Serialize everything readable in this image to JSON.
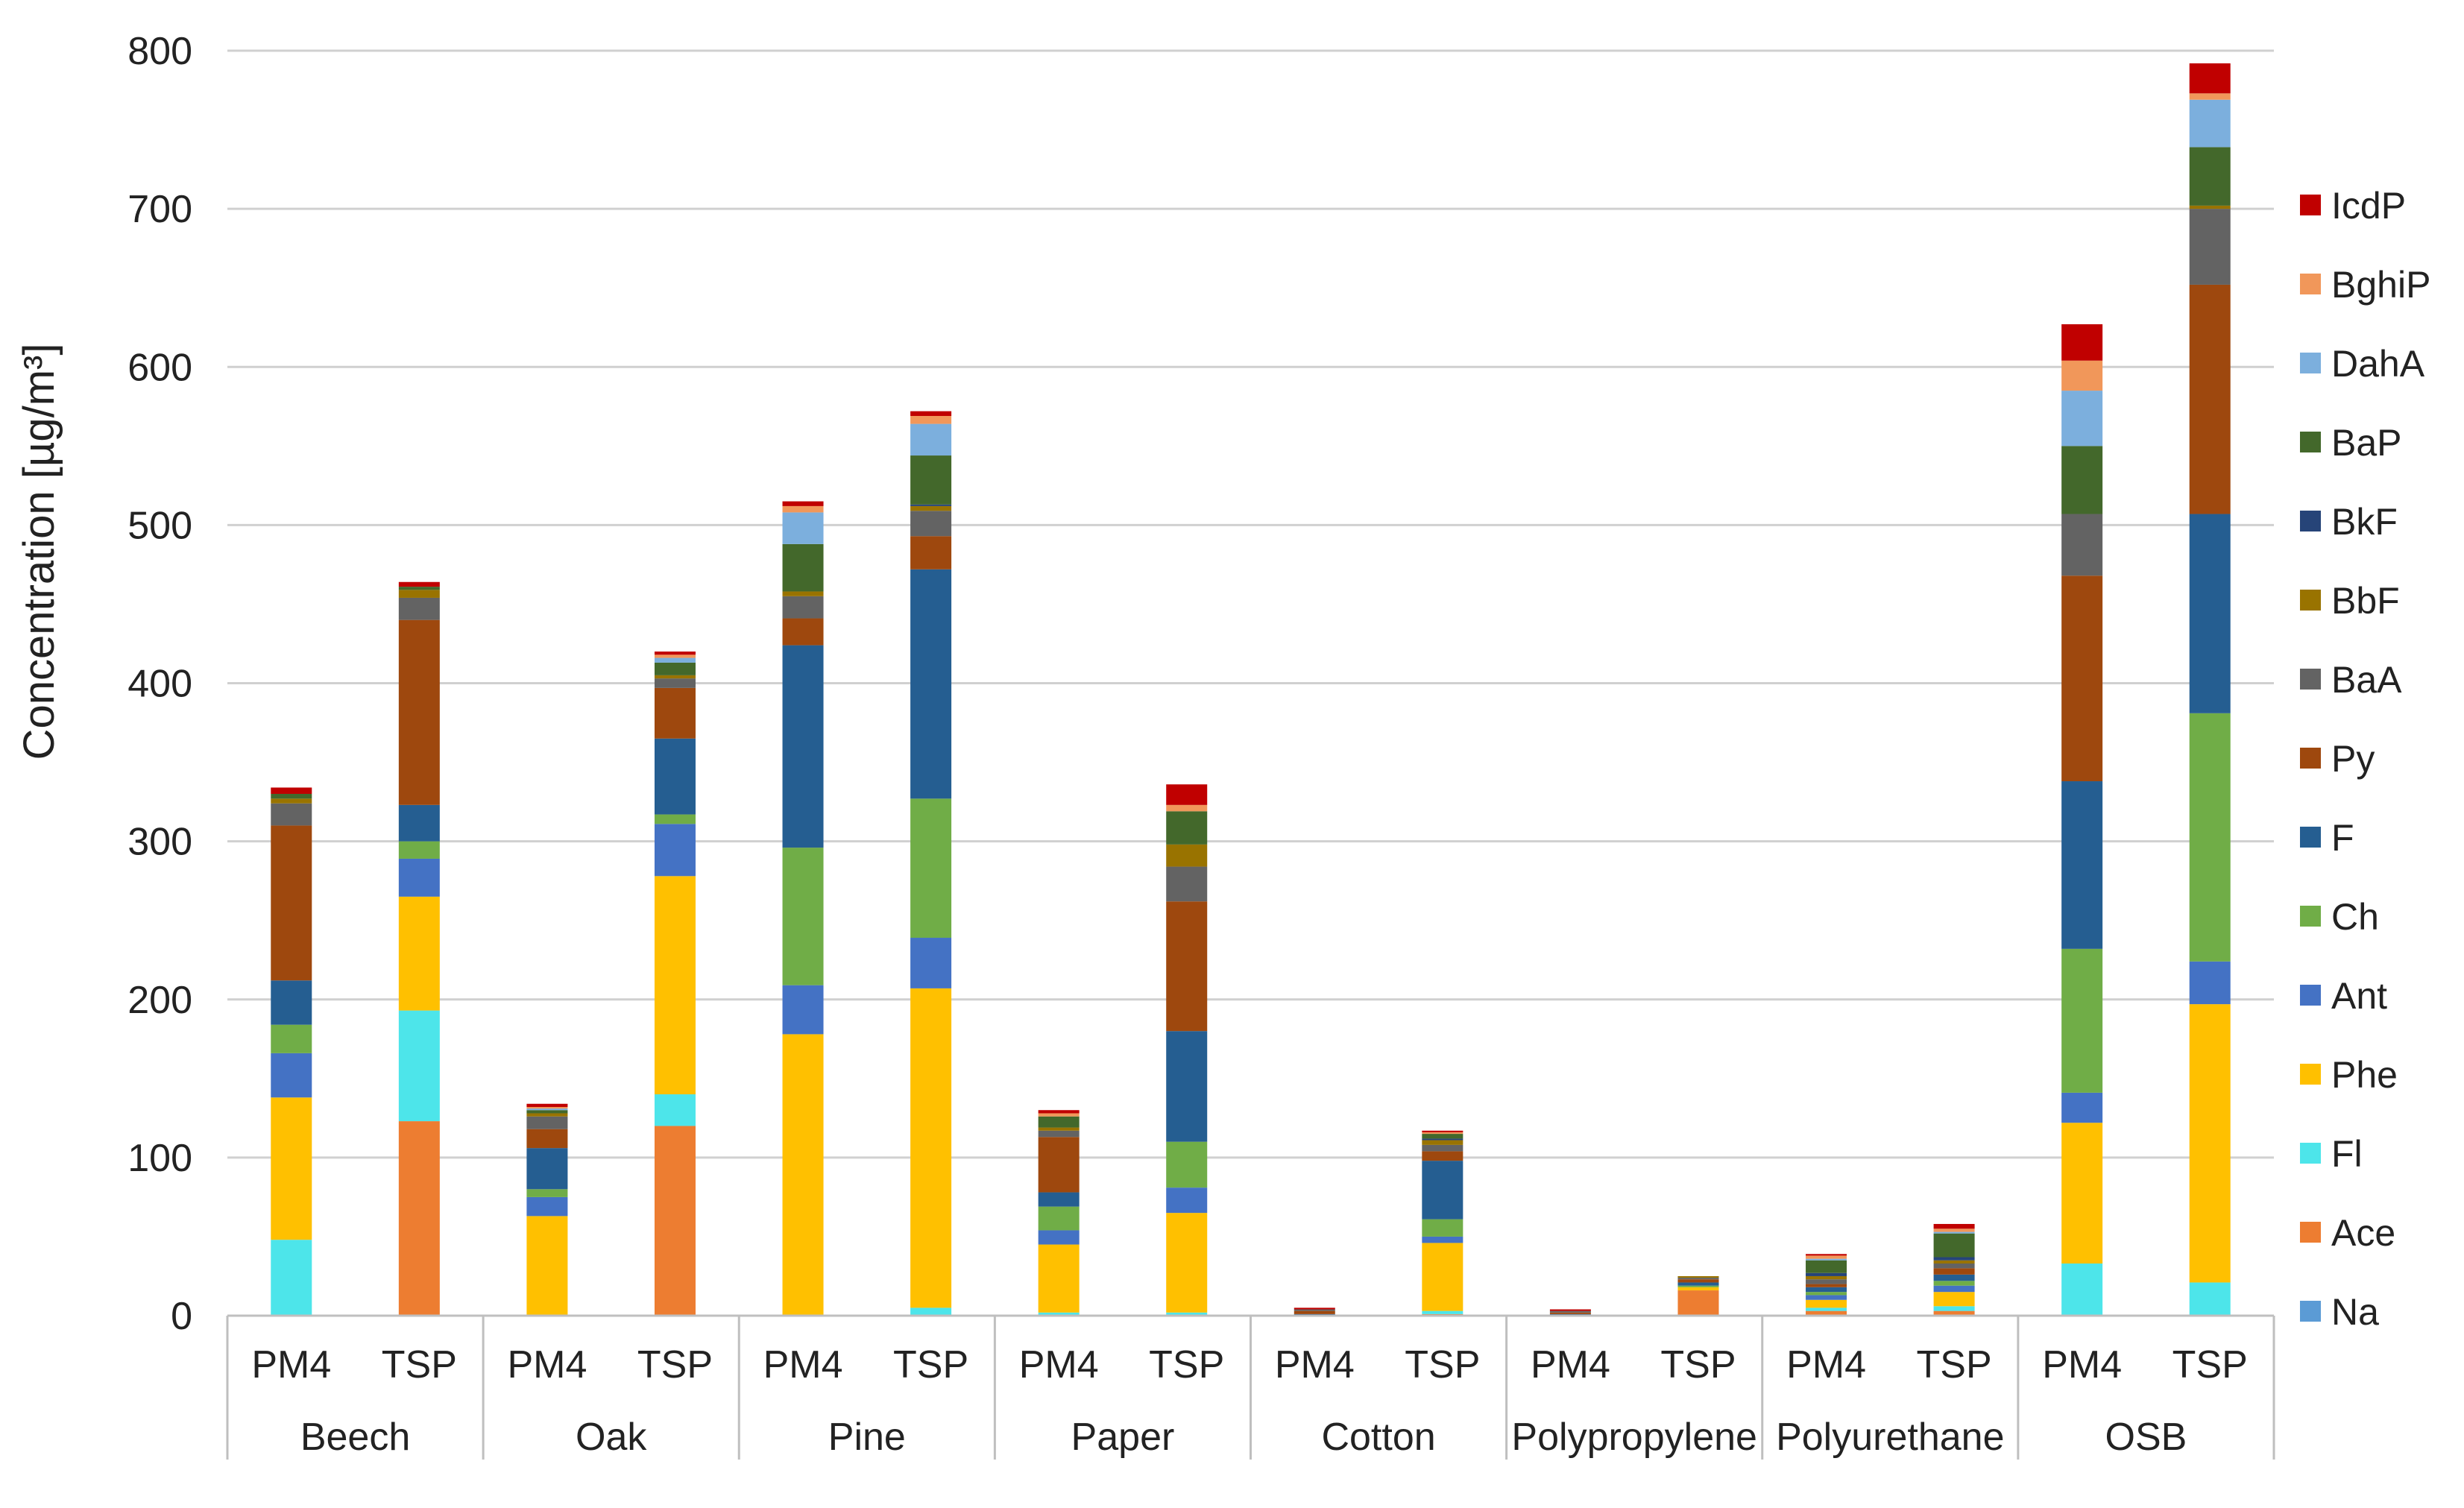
{
  "chart_data": {
    "type": "bar",
    "stacked": true,
    "title": "",
    "xlabel": "",
    "ylabel": "Concentration [µg/m³]",
    "ylim": [
      0,
      800
    ],
    "yticks": [
      0,
      100,
      200,
      300,
      400,
      500,
      600,
      700,
      800
    ],
    "grid": true,
    "legend_position": "right",
    "groups": [
      {
        "name": "Beech",
        "categories": [
          "PM4",
          "TSP"
        ]
      },
      {
        "name": "Oak",
        "categories": [
          "PM4",
          "TSP"
        ]
      },
      {
        "name": "Pine",
        "categories": [
          "PM4",
          "TSP"
        ]
      },
      {
        "name": "Paper",
        "categories": [
          "PM4",
          "TSP"
        ]
      },
      {
        "name": "Cotton",
        "categories": [
          "PM4",
          "TSP"
        ]
      },
      {
        "name": "Polypropylene",
        "categories": [
          "PM4",
          "TSP"
        ]
      },
      {
        "name": "Polyurethane",
        "categories": [
          "PM4",
          "TSP"
        ]
      },
      {
        "name": "OSB",
        "categories": [
          "PM4",
          "TSP"
        ]
      }
    ],
    "series": [
      {
        "name": "Na",
        "color": "#5b9bd5",
        "values": [
          0,
          0,
          0,
          0,
          0,
          0,
          0,
          0,
          0,
          0,
          0,
          0,
          0,
          0,
          0,
          0
        ]
      },
      {
        "name": "Ace",
        "color": "#ed7d31",
        "values": [
          0,
          123,
          0,
          120,
          0,
          0,
          0,
          0,
          0,
          1,
          0,
          16,
          3,
          3,
          0,
          0
        ]
      },
      {
        "name": "Fl",
        "color": "#4de5ea",
        "values": [
          48,
          70,
          0,
          20,
          0,
          5,
          2,
          2,
          0,
          2,
          0,
          0,
          2,
          3,
          33,
          21
        ]
      },
      {
        "name": "Phe",
        "color": "#ffc000",
        "values": [
          90,
          72,
          63,
          138,
          178,
          202,
          43,
          63,
          0,
          43,
          0,
          2,
          5,
          9,
          89,
          176
        ]
      },
      {
        "name": "Ant",
        "color": "#4472c4",
        "values": [
          28,
          24,
          12,
          33,
          31,
          32,
          9,
          16,
          0,
          4,
          0,
          0,
          3,
          4,
          19,
          27
        ]
      },
      {
        "name": "Ch",
        "color": "#70ad47",
        "values": [
          18,
          11,
          5,
          6,
          87,
          88,
          15,
          29,
          0,
          11,
          0,
          1,
          2,
          3,
          91,
          157
        ]
      },
      {
        "name": "F",
        "color": "#255e91",
        "values": [
          28,
          23,
          26,
          48,
          128,
          145,
          9,
          70,
          1,
          37,
          1,
          2,
          3,
          4,
          106,
          126
        ]
      },
      {
        "name": "Py",
        "color": "#9e480e",
        "values": [
          98,
          117,
          12,
          32,
          17,
          21,
          35,
          82,
          2,
          6,
          1,
          2,
          2,
          4,
          130,
          145
        ]
      },
      {
        "name": "BaA",
        "color": "#636363",
        "values": [
          14,
          14,
          8,
          6,
          14,
          16,
          4,
          22,
          1,
          4,
          1,
          1,
          3,
          3,
          39,
          48
        ]
      },
      {
        "name": "BbF",
        "color": "#997300",
        "values": [
          3,
          5,
          2,
          2,
          3,
          3,
          2,
          14,
          0,
          3,
          0,
          1,
          2,
          2,
          0,
          2
        ]
      },
      {
        "name": "BkF",
        "color": "#264478",
        "values": [
          0,
          0,
          0,
          0,
          0,
          1,
          0,
          0,
          0,
          1,
          0,
          0,
          2,
          2,
          0,
          0
        ]
      },
      {
        "name": "BaP",
        "color": "#43682b",
        "values": [
          3,
          2,
          2,
          8,
          30,
          31,
          7,
          21,
          0,
          3,
          0,
          0,
          8,
          15,
          43,
          37
        ]
      },
      {
        "name": "DahA",
        "color": "#7cafdd",
        "values": [
          0,
          0,
          1,
          3,
          20,
          20,
          0,
          0,
          0,
          0,
          0,
          0,
          1,
          1,
          35,
          30
        ]
      },
      {
        "name": "BghiP",
        "color": "#f1975a",
        "values": [
          0,
          0,
          1,
          2,
          4,
          5,
          2,
          4,
          0,
          1,
          0,
          0,
          2,
          2,
          19,
          4
        ]
      },
      {
        "name": "IcdP",
        "color": "#c00000",
        "values": [
          4,
          3,
          2,
          2,
          3,
          3,
          2,
          13,
          1,
          1,
          1,
          0,
          1,
          3,
          23,
          19
        ]
      }
    ]
  }
}
